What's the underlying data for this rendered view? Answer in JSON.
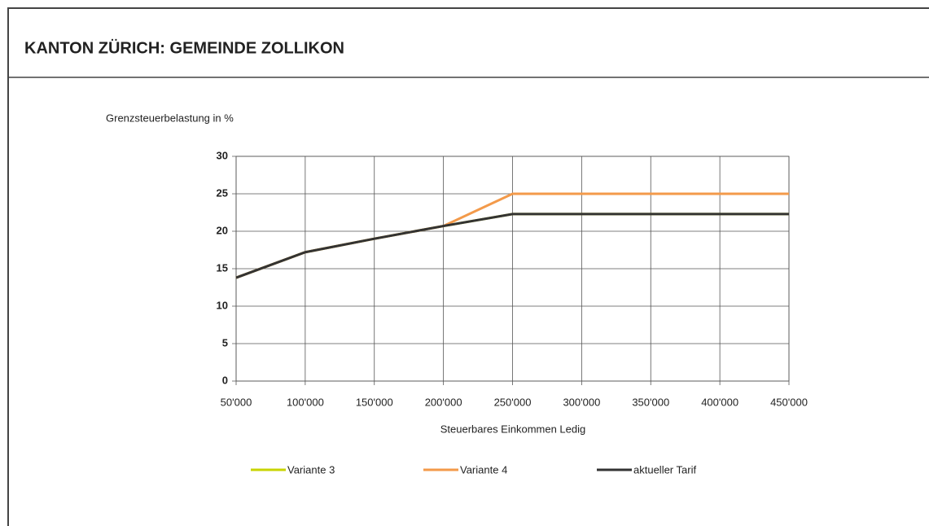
{
  "header": {
    "title": "KANTON ZÜRICH: GEMEINDE ZOLLIKON"
  },
  "chart_data": {
    "type": "line",
    "y_label": "Grenzsteuerbelastung in %",
    "x_label": "Steuerbares Einkommen Ledig",
    "x": [
      50000,
      100000,
      150000,
      200000,
      250000,
      300000,
      350000,
      400000,
      450000
    ],
    "series": [
      {
        "name": "Variante 3",
        "color": "#c8d400",
        "values": [
          13.8,
          17.2,
          19.0,
          20.7,
          22.3,
          22.3,
          22.3,
          22.3,
          22.3
        ]
      },
      {
        "name": "Variante 4",
        "color": "#f39a4a",
        "values": [
          13.8,
          17.2,
          19.0,
          20.7,
          25,
          25,
          25,
          25,
          25
        ]
      },
      {
        "name": "aktueller Tarif",
        "color": "#333333",
        "values": [
          13.8,
          17.2,
          19.0,
          20.7,
          22.3,
          22.3,
          22.3,
          22.3,
          22.3
        ]
      }
    ],
    "xlim": [
      50000,
      450000
    ],
    "xticks": [
      {
        "value": 50000,
        "label": "50'000"
      },
      {
        "value": 100000,
        "label": "100'000"
      },
      {
        "value": 150000,
        "label": "150'000"
      },
      {
        "value": 200000,
        "label": "200'000"
      },
      {
        "value": 250000,
        "label": "250'000"
      },
      {
        "value": 300000,
        "label": "300'000"
      },
      {
        "value": 350000,
        "label": "350'000"
      },
      {
        "value": 400000,
        "label": "400'000"
      },
      {
        "value": 450000,
        "label": "450'000"
      }
    ],
    "ylim": [
      0,
      30
    ],
    "yticks": [
      0,
      5,
      10,
      15,
      20,
      25,
      30
    ],
    "grid": true
  }
}
